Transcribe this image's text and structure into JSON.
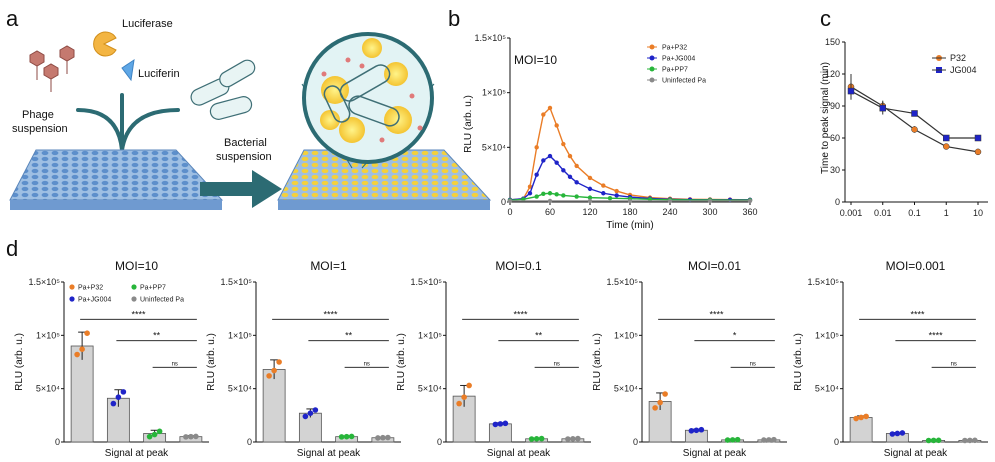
{
  "colors": {
    "P32": "#ea7d27",
    "JG004": "#1f24c8",
    "PP7": "#27b53a",
    "Uninfected": "#8a8a8a",
    "bar_fill": "#d3d3d3",
    "plate": "#7fa8d6",
    "plate_yellow": "#f2d43a",
    "arrow": "#2c6b73"
  },
  "panel_a": {
    "label": "a",
    "luciferase": "Luciferase",
    "luciferin": "Luciferin",
    "phage_line1": "Phage",
    "phage_line2": "suspension",
    "bacterial_line1": "Bacterial",
    "bacterial_line2": "suspension"
  },
  "chart_data": [
    {
      "id": "b",
      "label": "b",
      "type": "line",
      "annotation": "MOI=10",
      "xlabel": "Time (min)",
      "ylabel": "RLU (arb. u.)",
      "x_ticks": [
        0,
        60,
        120,
        180,
        240,
        300,
        360
      ],
      "y_tick_labels": [
        "0",
        "5×10⁴",
        "1×10⁵",
        "1.5×10⁵"
      ],
      "y_tick_values": [
        0,
        50000,
        100000,
        150000
      ],
      "xlim": [
        0,
        360
      ],
      "ylim": [
        0,
        150000
      ],
      "x_tick_labels": [
        "0",
        "60",
        "120",
        "180",
        "240",
        "300",
        "360"
      ],
      "legend_position": "top-right",
      "series": [
        {
          "name": "Pa+P32",
          "key": "P32",
          "x": [
            0,
            20,
            30,
            40,
            50,
            60,
            70,
            80,
            90,
            100,
            120,
            140,
            160,
            180,
            210,
            240,
            270,
            300,
            330,
            360
          ],
          "y": [
            2000,
            3000,
            14000,
            50000,
            80000,
            86000,
            70000,
            53000,
            42000,
            33000,
            22000,
            15000,
            10000,
            6500,
            4000,
            3000,
            2500,
            2300,
            2200,
            2000
          ]
        },
        {
          "name": "Pa+JG004",
          "key": "JG004",
          "x": [
            0,
            20,
            30,
            40,
            50,
            60,
            70,
            80,
            90,
            100,
            120,
            140,
            160,
            180,
            210,
            240,
            270,
            300,
            330,
            360
          ],
          "y": [
            2000,
            3000,
            8000,
            25000,
            38000,
            42000,
            36000,
            29000,
            23000,
            18000,
            12000,
            8000,
            6000,
            4500,
            3200,
            2500,
            2100,
            2000,
            2000,
            2000
          ]
        },
        {
          "name": "Pa+PP7",
          "key": "PP7",
          "x": [
            0,
            20,
            40,
            50,
            60,
            70,
            80,
            100,
            120,
            150,
            180,
            210,
            240,
            300,
            360
          ],
          "y": [
            1500,
            2500,
            5000,
            7500,
            8000,
            7000,
            6000,
            5000,
            4000,
            3500,
            3000,
            2500,
            2000,
            1800,
            1600
          ]
        },
        {
          "name": "Uninfected Pa",
          "key": "Uninfected",
          "x": [
            0,
            60,
            120,
            180,
            240,
            300,
            360
          ],
          "y": [
            1000,
            1000,
            1000,
            1000,
            1000,
            1000,
            1000
          ]
        }
      ]
    },
    {
      "id": "c",
      "label": "c",
      "type": "line",
      "xscale": "log",
      "xlabel": "",
      "ylabel": "Time to peak signal (min)",
      "x_ticks": [
        0.001,
        0.01,
        0.1,
        1,
        10
      ],
      "x_tick_labels": [
        "0.001",
        "0.01",
        "0.1",
        "1",
        "10"
      ],
      "y_ticks": [
        0,
        30,
        60,
        90,
        120,
        150
      ],
      "ylim": [
        0,
        150
      ],
      "legend_position": "top-right",
      "series": [
        {
          "name": "P32",
          "key": "P32",
          "x": [
            0.001,
            0.01,
            0.1,
            1,
            10
          ],
          "y": [
            108,
            90,
            68,
            52,
            47
          ],
          "err": [
            12,
            5,
            3,
            2,
            2
          ]
        },
        {
          "name": "JG004",
          "key": "JG004",
          "x": [
            0.001,
            0.01,
            0.1,
            1,
            10
          ],
          "y": [
            104,
            88,
            83,
            60,
            60
          ],
          "err": [
            8,
            6,
            2,
            1,
            1
          ]
        }
      ]
    },
    {
      "id": "d1",
      "label": "d",
      "type": "bar",
      "title": "MOI=10",
      "ylabel": "RLU (arb. u.)",
      "xlabel": "Signal at peak",
      "ylim": [
        0,
        150000
      ],
      "y_tick_labels": [
        "0",
        "5×10⁴",
        "1×10⁵",
        "1.5×10⁵"
      ],
      "y_tick_values": [
        0,
        50000,
        100000,
        150000
      ],
      "categories": [
        "Pa+P32",
        "Pa+JG004",
        "Pa+PP7",
        "Uninfected Pa"
      ],
      "keys": [
        "P32",
        "JG004",
        "PP7",
        "Uninfected"
      ],
      "values": [
        90000,
        41000,
        8000,
        5000
      ],
      "errors": [
        13000,
        8000,
        3000,
        1000
      ],
      "points": [
        [
          82000,
          87000,
          102000
        ],
        [
          36000,
          42000,
          47000
        ],
        [
          5000,
          7000,
          10000
        ],
        [
          4800,
          5000,
          5200
        ]
      ],
      "legend": true,
      "significance": [
        "****",
        "**",
        "ns"
      ]
    },
    {
      "id": "d2",
      "type": "bar",
      "title": "MOI=1",
      "ylabel": "RLU (arb. u.)",
      "xlabel": "Signal at peak",
      "ylim": [
        0,
        150000
      ],
      "y_tick_labels": [
        "0",
        "5×10⁴",
        "1×10⁵",
        "1.5×10⁵"
      ],
      "y_tick_values": [
        0,
        50000,
        100000,
        150000
      ],
      "categories": [
        "Pa+P32",
        "Pa+JG004",
        "Pa+PP7",
        "Uninfected Pa"
      ],
      "keys": [
        "P32",
        "JG004",
        "PP7",
        "Uninfected"
      ],
      "values": [
        68000,
        27000,
        5000,
        4000
      ],
      "errors": [
        9000,
        4000,
        500,
        500
      ],
      "points": [
        [
          62000,
          67000,
          75000
        ],
        [
          24000,
          27000,
          30000
        ],
        [
          4800,
          5000,
          5200
        ],
        [
          3800,
          4000,
          4200
        ]
      ],
      "legend": false,
      "significance": [
        "****",
        "**",
        "ns"
      ]
    },
    {
      "id": "d3",
      "type": "bar",
      "title": "MOI=0.1",
      "ylabel": "RLU (arb. u.)",
      "xlabel": "Signal at peak",
      "ylim": [
        0,
        150000
      ],
      "y_tick_labels": [
        "0",
        "5×10⁴",
        "1×10⁵",
        "1.5×10⁵"
      ],
      "y_tick_values": [
        0,
        50000,
        100000,
        150000
      ],
      "categories": [
        "Pa+P32",
        "Pa+JG004",
        "Pa+PP7",
        "Uninfected Pa"
      ],
      "keys": [
        "P32",
        "JG004",
        "PP7",
        "Uninfected"
      ],
      "values": [
        43000,
        17000,
        3000,
        3000
      ],
      "errors": [
        10000,
        1000,
        500,
        500
      ],
      "points": [
        [
          36000,
          42000,
          53000
        ],
        [
          16500,
          17000,
          17500
        ],
        [
          2800,
          3000,
          3200
        ],
        [
          2800,
          3000,
          3200
        ]
      ],
      "legend": false,
      "significance": [
        "****",
        "**",
        "ns"
      ]
    },
    {
      "id": "d4",
      "type": "bar",
      "title": "MOI=0.01",
      "ylabel": "RLU (arb. u.)",
      "xlabel": "Signal at peak",
      "ylim": [
        0,
        150000
      ],
      "y_tick_labels": [
        "0",
        "5×10⁴",
        "1×10⁵",
        "1.5×10⁵"
      ],
      "y_tick_values": [
        0,
        50000,
        100000,
        150000
      ],
      "categories": [
        "Pa+P32",
        "Pa+JG004",
        "Pa+PP7",
        "Uninfected Pa"
      ],
      "keys": [
        "P32",
        "JG004",
        "PP7",
        "Uninfected"
      ],
      "values": [
        38000,
        11000,
        2000,
        2000
      ],
      "errors": [
        8000,
        1000,
        300,
        300
      ],
      "points": [
        [
          32000,
          37000,
          45000
        ],
        [
          10500,
          11000,
          11500
        ],
        [
          1800,
          2000,
          2200
        ],
        [
          1800,
          2000,
          2200
        ]
      ],
      "legend": false,
      "significance": [
        "****",
        "*",
        "ns"
      ]
    },
    {
      "id": "d5",
      "type": "bar",
      "title": "MOI=0.001",
      "ylabel": "RLU (arb. u.)",
      "xlabel": "Signal at peak",
      "ylim": [
        0,
        150000
      ],
      "y_tick_labels": [
        "0",
        "5×10⁴",
        "1×10⁵",
        "1.5×10⁵"
      ],
      "y_tick_values": [
        0,
        50000,
        100000,
        150000
      ],
      "categories": [
        "Pa+P32",
        "Pa+JG004",
        "Pa+PP7",
        "Uninfected Pa"
      ],
      "keys": [
        "P32",
        "JG004",
        "PP7",
        "Uninfected"
      ],
      "values": [
        23000,
        8000,
        1500,
        1500
      ],
      "errors": [
        1500,
        800,
        200,
        200
      ],
      "points": [
        [
          22000,
          23000,
          24000
        ],
        [
          7500,
          8000,
          8500
        ],
        [
          1400,
          1500,
          1600
        ],
        [
          1400,
          1500,
          1600
        ]
      ],
      "legend": false,
      "significance": [
        "****",
        "****",
        "ns"
      ]
    }
  ]
}
